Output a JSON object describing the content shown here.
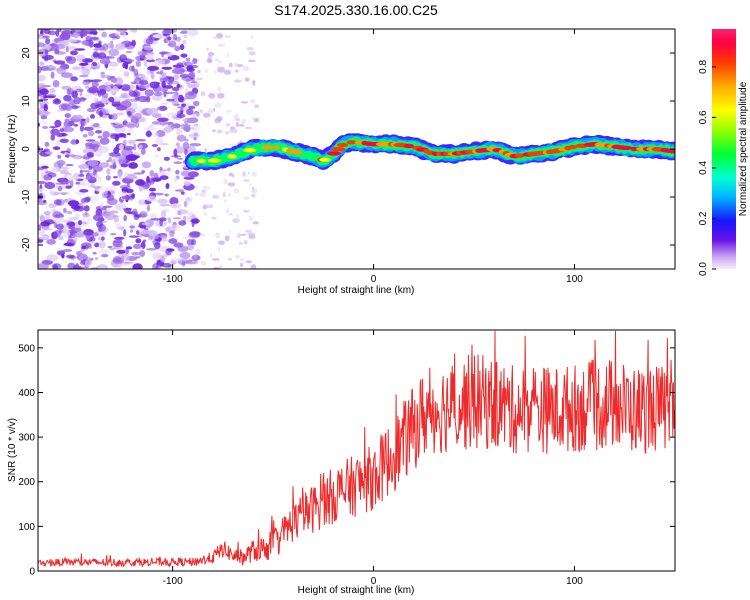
{
  "title": "S174.2025.330.16.00.C25",
  "chart_data": [
    {
      "type": "heatmap",
      "name": "spectrogram",
      "xlabel": "Height of straight line (km)",
      "ylabel": "Frequency (Hz)",
      "xlim": [
        -167,
        150
      ],
      "ylim": [
        -25,
        25
      ],
      "xticks": [
        -100,
        0,
        100
      ],
      "yticks": [
        -20,
        -10,
        0,
        10,
        20
      ],
      "colorbar": {
        "label": "Normalized spectral amplitude",
        "range": [
          0,
          0.95
        ],
        "ticks": [
          0.0,
          0.2,
          0.4,
          0.6,
          0.8
        ],
        "tick_labels": [
          "0.0",
          "0.2",
          "0.4",
          "0.6",
          "0.8"
        ]
      },
      "ridge": {
        "description": "dominant frequency track vs height",
        "x": [
          -90,
          -80,
          -70,
          -60,
          -50,
          -40,
          -30,
          -25,
          -20,
          -15,
          -10,
          0,
          10,
          20,
          30,
          40,
          50,
          60,
          70,
          80,
          90,
          100,
          110,
          120,
          130,
          140,
          150
        ],
        "freq": [
          -2.5,
          -2.5,
          -1.5,
          0,
          0.5,
          -0.5,
          -1.5,
          -2.5,
          -1,
          1,
          1.5,
          1,
          1,
          0.5,
          -1,
          -1,
          -0.5,
          0,
          -1.5,
          -1,
          -0.5,
          0.5,
          1,
          0.5,
          0,
          0,
          -0.5
        ]
      },
      "noise_region": {
        "x_from": -167,
        "x_to": -88,
        "amplitude": "low (violet)"
      }
    },
    {
      "type": "line",
      "name": "snr",
      "xlabel": "Height of straight line (km)",
      "ylabel": "SNR (10 * v/v)",
      "xlim": [
        -167,
        150
      ],
      "ylim": [
        0,
        540
      ],
      "xticks": [
        -100,
        0,
        100
      ],
      "yticks": [
        0,
        100,
        200,
        300,
        400,
        500
      ],
      "color": "#ef2a2a",
      "series": [
        {
          "name": "SNR",
          "x": [
            -167,
            -150,
            -130,
            -110,
            -90,
            -80,
            -75,
            -70,
            -65,
            -60,
            -55,
            -50,
            -40,
            -30,
            -20,
            -10,
            0,
            10,
            20,
            25,
            30,
            40,
            50,
            60,
            70,
            80,
            90,
            100,
            110,
            120,
            130,
            140,
            150
          ],
          "mean": [
            18,
            20,
            19,
            20,
            20,
            30,
            50,
            35,
            30,
            45,
            50,
            60,
            110,
            140,
            170,
            190,
            210,
            260,
            320,
            350,
            360,
            370,
            380,
            375,
            360,
            365,
            360,
            365,
            370,
            375,
            360,
            365,
            360
          ],
          "spread": [
            8,
            9,
            9,
            9,
            10,
            14,
            20,
            18,
            18,
            25,
            30,
            35,
            45,
            55,
            65,
            70,
            75,
            85,
            95,
            100,
            100,
            105,
            110,
            105,
            100,
            100,
            100,
            100,
            105,
            105,
            100,
            100,
            95
          ]
        }
      ]
    }
  ]
}
